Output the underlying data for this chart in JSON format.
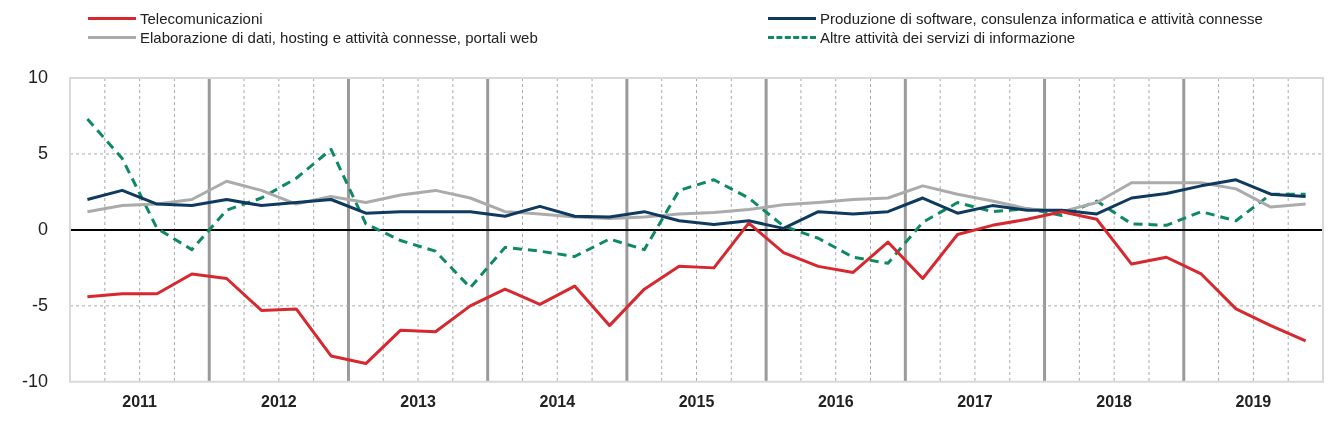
{
  "chart_data": {
    "type": "line",
    "x": [
      2011.125,
      2011.375,
      2011.625,
      2011.875,
      2012.125,
      2012.375,
      2012.625,
      2012.875,
      2013.125,
      2013.375,
      2013.625,
      2013.875,
      2014.125,
      2014.375,
      2014.625,
      2014.875,
      2015.125,
      2015.375,
      2015.625,
      2015.875,
      2016.125,
      2016.375,
      2016.625,
      2016.875,
      2017.125,
      2017.375,
      2017.625,
      2017.875,
      2018.125,
      2018.375,
      2018.625,
      2018.875,
      2019.125,
      2019.375,
      2019.625,
      2019.875
    ],
    "series": [
      {
        "name": "Telecomunicazioni",
        "color": "#d7282f",
        "values": [
          -4.4,
          -4.2,
          -4.2,
          -2.9,
          -3.2,
          -5.3,
          -5.2,
          -8.3,
          -8.8,
          -6.6,
          -6.7,
          -5.0,
          -3.9,
          -4.9,
          -3.7,
          -6.3,
          -3.9,
          -2.4,
          -2.5,
          0.45,
          -1.5,
          -2.4,
          -2.8,
          -0.8,
          -3.2,
          -0.3,
          0.3,
          0.7,
          1.2,
          0.7,
          -2.25,
          -1.8,
          -2.9,
          -5.2,
          -6.3,
          -7.3
        ]
      },
      {
        "name": "Produzione di software, consulenza informatica e attività connesse",
        "color": "#0f3a5f",
        "values": [
          2.0,
          2.6,
          1.7,
          1.6,
          2.0,
          1.6,
          1.8,
          2.0,
          1.1,
          1.2,
          1.2,
          1.2,
          0.9,
          1.55,
          0.9,
          0.85,
          1.2,
          0.6,
          0.35,
          0.6,
          0.1,
          1.2,
          1.05,
          1.2,
          2.1,
          1.1,
          1.6,
          1.3,
          1.3,
          1.05,
          2.1,
          2.4,
          2.9,
          3.3,
          2.35,
          2.2
        ]
      },
      {
        "name": "Elaborazione di dati, hosting e attività connesse, portali web",
        "color": "#ababab",
        "values": [
          1.2,
          1.6,
          1.7,
          2.0,
          3.2,
          2.6,
          1.7,
          2.2,
          1.8,
          2.3,
          2.6,
          2.1,
          1.2,
          1.05,
          0.85,
          0.75,
          0.85,
          1.05,
          1.15,
          1.35,
          1.65,
          1.8,
          2.0,
          2.1,
          2.9,
          2.35,
          1.9,
          1.4,
          1.2,
          1.8,
          3.1,
          3.1,
          3.1,
          2.7,
          1.5,
          1.7
        ]
      },
      {
        "name": "Altre attività dei servizi di informazione",
        "color": "#0e8a62",
        "line_style": "dashed",
        "values": [
          7.3,
          4.7,
          0.1,
          -1.3,
          1.3,
          2.1,
          3.4,
          5.3,
          0.4,
          -0.7,
          -1.4,
          -3.8,
          -1.15,
          -1.4,
          -1.75,
          -0.6,
          -1.3,
          2.6,
          3.3,
          2.1,
          0.25,
          -0.55,
          -1.8,
          -2.2,
          0.5,
          1.8,
          1.2,
          1.4,
          0.95,
          1.9,
          0.4,
          0.3,
          1.2,
          0.6,
          2.35,
          2.35
        ]
      }
    ],
    "xlim": [
      2011,
      2020
    ],
    "xticks": [
      {
        "value": 2011,
        "label": null
      },
      {
        "value": 2011.25,
        "label": null
      },
      {
        "value": 2011.5,
        "label": "2011"
      },
      {
        "value": 2011.75,
        "label": null
      },
      {
        "value": 2012,
        "label": null
      },
      {
        "value": 2012.25,
        "label": null
      },
      {
        "value": 2012.5,
        "label": "2012"
      },
      {
        "value": 2012.75,
        "label": null
      },
      {
        "value": 2013,
        "label": null
      },
      {
        "value": 2013.25,
        "label": null
      },
      {
        "value": 2013.5,
        "label": "2013"
      },
      {
        "value": 2013.75,
        "label": null
      },
      {
        "value": 2014,
        "label": null
      },
      {
        "value": 2014.25,
        "label": null
      },
      {
        "value": 2014.5,
        "label": "2014"
      },
      {
        "value": 2014.75,
        "label": null
      },
      {
        "value": 2015,
        "label": null
      },
      {
        "value": 2015.25,
        "label": null
      },
      {
        "value": 2015.5,
        "label": "2015"
      },
      {
        "value": 2015.75,
        "label": null
      },
      {
        "value": 2016,
        "label": null
      },
      {
        "value": 2016.25,
        "label": null
      },
      {
        "value": 2016.5,
        "label": "2016"
      },
      {
        "value": 2016.75,
        "label": null
      },
      {
        "value": 2017,
        "label": null
      },
      {
        "value": 2017.25,
        "label": null
      },
      {
        "value": 2017.5,
        "label": "2017"
      },
      {
        "value": 2017.75,
        "label": null
      },
      {
        "value": 2018,
        "label": null
      },
      {
        "value": 2018.25,
        "label": null
      },
      {
        "value": 2018.5,
        "label": "2018"
      },
      {
        "value": 2018.75,
        "label": null
      },
      {
        "value": 2019,
        "label": null
      },
      {
        "value": 2019.25,
        "label": null
      },
      {
        "value": 2019.5,
        "label": "2019"
      },
      {
        "value": 2019.75,
        "label": null
      },
      {
        "value": 2020,
        "label": null
      }
    ],
    "ylim": [
      -10,
      10
    ],
    "yticks": [
      -10,
      -5,
      0,
      5,
      10
    ],
    "ref_lines": [
      {
        "axis": "y",
        "value": 0,
        "color": "#000000"
      }
    ],
    "grid": true,
    "legend": "top",
    "marker": "none"
  }
}
